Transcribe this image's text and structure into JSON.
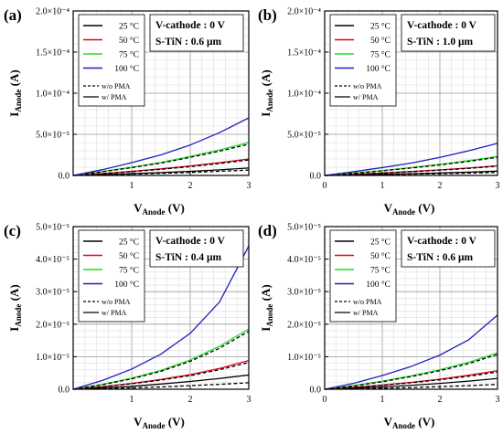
{
  "chart_data": [
    {
      "type": "line",
      "panel_label": "(a)",
      "annotation": [
        "V-cathode : 0 V",
        "S-TiN : 0.6 μm"
      ],
      "xlabel": "V",
      "xlabel_sub": "Anode",
      "xlabel_unit": "(V)",
      "ylabel": "I",
      "ylabel_sub": "Anode",
      "ylabel_unit": "(A)",
      "xlim": [
        0,
        3
      ],
      "ylim": [
        0,
        0.0002
      ],
      "xticks": [
        "1",
        "2",
        "3"
      ],
      "yticks": [
        "0.0",
        "5.0×10⁻⁵",
        "1.0×10⁻⁴",
        "1.5×10⁻⁴",
        "2.0×10⁻⁴"
      ],
      "ytick_values": [
        0,
        5e-05,
        0.0001,
        0.00015,
        0.0002
      ],
      "x": [
        0,
        0.5,
        1,
        1.5,
        2,
        2.5,
        3
      ],
      "series": [
        {
          "name": "25 °C",
          "color": "#000000",
          "dash": false,
          "values": [
            0,
            1e-06,
            2.2e-06,
            3.5e-06,
            5e-06,
            6.8e-06,
            9e-06
          ]
        },
        {
          "name": "25 °C",
          "color": "#000000",
          "dash": true,
          "values": [
            0,
            7e-07,
            1.5e-06,
            2.5e-06,
            3.6e-06,
            5e-06,
            6.5e-06
          ]
        },
        {
          "name": "50 °C",
          "color": "#e3001b",
          "dash": false,
          "values": [
            0,
            2.3e-06,
            5e-06,
            8e-06,
            1.15e-05,
            1.55e-05,
            2e-05
          ]
        },
        {
          "name": "50 °C",
          "color": "#000000",
          "dash": true,
          "values": [
            0,
            2.1e-06,
            4.6e-06,
            7.4e-06,
            1.07e-05,
            1.45e-05,
            1.88e-05
          ]
        },
        {
          "name": "75 °C",
          "color": "#22dd22",
          "dash": false,
          "values": [
            0,
            4.8e-06,
            1e-05,
            1.58e-05,
            2.3e-05,
            3.1e-05,
            4e-05
          ]
        },
        {
          "name": "75 °C",
          "color": "#000000",
          "dash": true,
          "values": [
            0,
            4.5e-06,
            9.5e-06,
            1.5e-05,
            2.2e-05,
            2.95e-05,
            3.8e-05
          ]
        },
        {
          "name": "100 °C",
          "color": "#1f1fbf",
          "dash": false,
          "values": [
            0,
            7e-06,
            1.55e-05,
            2.5e-05,
            3.7e-05,
            5.2e-05,
            7e-05
          ]
        }
      ],
      "legend": [
        "25 °C",
        "50 °C",
        "75 °C",
        "100 °C",
        "w/o PMA",
        "w/ PMA"
      ],
      "legend_position": "top-left",
      "grid": true
    },
    {
      "type": "line",
      "panel_label": "(b)",
      "annotation": [
        "V-cathode : 0 V",
        "S-TiN : 1.0 μm"
      ],
      "xlabel": "V",
      "xlabel_sub": "Anode",
      "xlabel_unit": "(V)",
      "ylabel": "I",
      "ylabel_sub": "Anode",
      "ylabel_unit": "(A)",
      "xlim": [
        0,
        3
      ],
      "ylim": [
        0,
        0.0002
      ],
      "xticks": [
        "0",
        "1",
        "2",
        "3"
      ],
      "yticks": [
        "0.0",
        "5.0×10⁻⁵",
        "1.0×10⁻⁴",
        "1.5×10⁻⁴",
        "2.0×10⁻⁴"
      ],
      "ytick_values": [
        0,
        5e-05,
        0.0001,
        0.00015,
        0.0002
      ],
      "x": [
        0,
        0.5,
        1,
        1.5,
        2,
        2.5,
        3
      ],
      "series": [
        {
          "name": "25 °C",
          "color": "#000000",
          "dash": false,
          "values": [
            0,
            6e-07,
            1.3e-06,
            2.1e-06,
            3e-06,
            4e-06,
            5.2e-06
          ]
        },
        {
          "name": "25 °C",
          "color": "#000000",
          "dash": true,
          "values": [
            0,
            4e-07,
            9e-07,
            1.5e-06,
            2.1e-06,
            2.8e-06,
            3.7e-06
          ]
        },
        {
          "name": "50 °C",
          "color": "#e3001b",
          "dash": false,
          "values": [
            0,
            1.4e-06,
            3e-06,
            4.8e-06,
            6.8e-06,
            9e-06,
            1.18e-05
          ]
        },
        {
          "name": "50 °C",
          "color": "#000000",
          "dash": true,
          "values": [
            0,
            1.3e-06,
            2.8e-06,
            4.5e-06,
            6.4e-06,
            8.6e-06,
            1.12e-05
          ]
        },
        {
          "name": "75 °C",
          "color": "#22dd22",
          "dash": false,
          "values": [
            0,
            2.8e-06,
            6e-06,
            9.5e-06,
            1.35e-05,
            1.8e-05,
            2.3e-05
          ]
        },
        {
          "name": "75 °C",
          "color": "#000000",
          "dash": true,
          "values": [
            0,
            2.6e-06,
            5.6e-06,
            9e-06,
            1.28e-05,
            1.71e-05,
            2.2e-05
          ]
        },
        {
          "name": "100 °C",
          "color": "#1f1fbf",
          "dash": false,
          "values": [
            0,
            4.5e-06,
            9.5e-06,
            1.5e-05,
            2.2e-05,
            3e-05,
            3.9e-05
          ]
        }
      ],
      "legend": [
        "25 °C",
        "50 °C",
        "75 °C",
        "100 °C",
        "w/o PMA",
        "w/ PMA"
      ],
      "legend_position": "top-left",
      "grid": true
    },
    {
      "type": "line",
      "panel_label": "(c)",
      "annotation": [
        "V-cathode : 0 V",
        "S-TiN : 0.4 μm"
      ],
      "xlabel": "V",
      "xlabel_sub": "Anode",
      "xlabel_unit": "(V)",
      "ylabel": "I",
      "ylabel_sub": "Anode",
      "ylabel_unit": "(A)",
      "xlim": [
        0,
        3
      ],
      "ylim": [
        0,
        5e-05
      ],
      "xticks": [
        "1",
        "2",
        "3"
      ],
      "yticks": [
        "0.0",
        "1.0×10⁻⁵",
        "2.0×10⁻⁵",
        "3.0×10⁻⁵",
        "4.0×10⁻⁵",
        "5.0×10⁻⁵"
      ],
      "ytick_values": [
        0,
        1e-05,
        2e-05,
        3e-05,
        4e-05,
        5e-05
      ],
      "x": [
        0,
        0.5,
        1,
        1.5,
        2,
        2.5,
        3
      ],
      "series": [
        {
          "name": "25 °C",
          "color": "#000000",
          "dash": false,
          "values": [
            0,
            4e-07,
            9e-07,
            1.6e-06,
            2.4e-06,
            3.3e-06,
            4.4e-06
          ]
        },
        {
          "name": "25 °C",
          "color": "#000000",
          "dash": true,
          "values": [
            0,
            1.5e-07,
            4e-07,
            7e-07,
            1.1e-06,
            1.5e-06,
            2e-06
          ]
        },
        {
          "name": "50 °C",
          "color": "#e3001b",
          "dash": false,
          "values": [
            0,
            8e-07,
            1.8e-06,
            3e-06,
            4.5e-06,
            6.4e-06,
            8.8e-06
          ]
        },
        {
          "name": "50 °C",
          "color": "#000000",
          "dash": true,
          "values": [
            0,
            7.5e-07,
            1.7e-06,
            2.8e-06,
            4.2e-06,
            6e-06,
            8.2e-06
          ]
        },
        {
          "name": "75 °C",
          "color": "#22dd22",
          "dash": false,
          "values": [
            0,
            1.5e-06,
            3.4e-06,
            5.8e-06,
            9e-06,
            1.32e-05,
            1.85e-05
          ]
        },
        {
          "name": "75 °C",
          "color": "#000000",
          "dash": true,
          "values": [
            0,
            1.4e-06,
            3.2e-06,
            5.5e-06,
            8.6e-06,
            1.26e-05,
            1.78e-05
          ]
        },
        {
          "name": "100 °C",
          "color": "#1f1fbf",
          "dash": false,
          "values": [
            0,
            2.7e-06,
            6.2e-06,
            1.08e-05,
            1.72e-05,
            2.68e-05,
            4.4e-05
          ]
        }
      ],
      "legend": [
        "25 °C",
        "50 °C",
        "75 °C",
        "100 °C",
        "w/o PMA",
        "w/ PMA"
      ],
      "legend_position": "top-left",
      "grid": true
    },
    {
      "type": "line",
      "panel_label": "(d)",
      "annotation": [
        "V-cathode : 0 V",
        "S-TiN : 0.6 μm"
      ],
      "xlabel": "V",
      "xlabel_sub": "Anode",
      "xlabel_unit": "(V)",
      "ylabel": "I",
      "ylabel_sub": "Anode",
      "ylabel_unit": "(A)",
      "xlim": [
        0,
        3
      ],
      "ylim": [
        0,
        5e-05
      ],
      "xticks": [
        "0",
        "1",
        "2",
        "3"
      ],
      "yticks": [
        "0.0",
        "1.0×10⁻⁵",
        "2.0×10⁻⁵",
        "3.0×10⁻⁵",
        "4.0×10⁻⁵",
        "5.0×10⁻⁵"
      ],
      "ytick_values": [
        0,
        1e-05,
        2e-05,
        3e-05,
        4e-05,
        5e-05
      ],
      "x": [
        0,
        0.5,
        1,
        1.5,
        2,
        2.5,
        3
      ],
      "series": [
        {
          "name": "25 °C",
          "color": "#000000",
          "dash": false,
          "values": [
            0,
            3e-07,
            7e-07,
            1.2e-06,
            1.8e-06,
            2.5e-06,
            3.3e-06
          ]
        },
        {
          "name": "25 °C",
          "color": "#000000",
          "dash": true,
          "values": [
            0,
            1e-07,
            3e-07,
            5e-07,
            8e-07,
            1.1e-06,
            1.5e-06
          ]
        },
        {
          "name": "50 °C",
          "color": "#e3001b",
          "dash": false,
          "values": [
            0,
            6e-07,
            1.3e-06,
            2.1e-06,
            3.1e-06,
            4.3e-06,
            5.7e-06
          ]
        },
        {
          "name": "50 °C",
          "color": "#000000",
          "dash": true,
          "values": [
            0,
            5.5e-07,
            1.2e-06,
            2e-06,
            2.9e-06,
            4e-06,
            5.3e-06
          ]
        },
        {
          "name": "75 °C",
          "color": "#22dd22",
          "dash": false,
          "values": [
            0,
            1.1e-06,
            2.5e-06,
            4.1e-06,
            6e-06,
            8.3e-06,
            1.12e-05
          ]
        },
        {
          "name": "75 °C",
          "color": "#000000",
          "dash": true,
          "values": [
            0,
            1e-06,
            2.3e-06,
            3.9e-06,
            5.7e-06,
            7.9e-06,
            1.07e-05
          ]
        },
        {
          "name": "100 °C",
          "color": "#1f1fbf",
          "dash": false,
          "values": [
            0,
            1.8e-06,
            4.2e-06,
            7e-06,
            1.05e-05,
            1.52e-05,
            2.28e-05
          ]
        }
      ],
      "legend": [
        "25 °C",
        "50 °C",
        "75 °C",
        "100 °C",
        "w/o PMA",
        "w/ PMA"
      ],
      "legend_position": "top-left",
      "grid": true
    }
  ]
}
